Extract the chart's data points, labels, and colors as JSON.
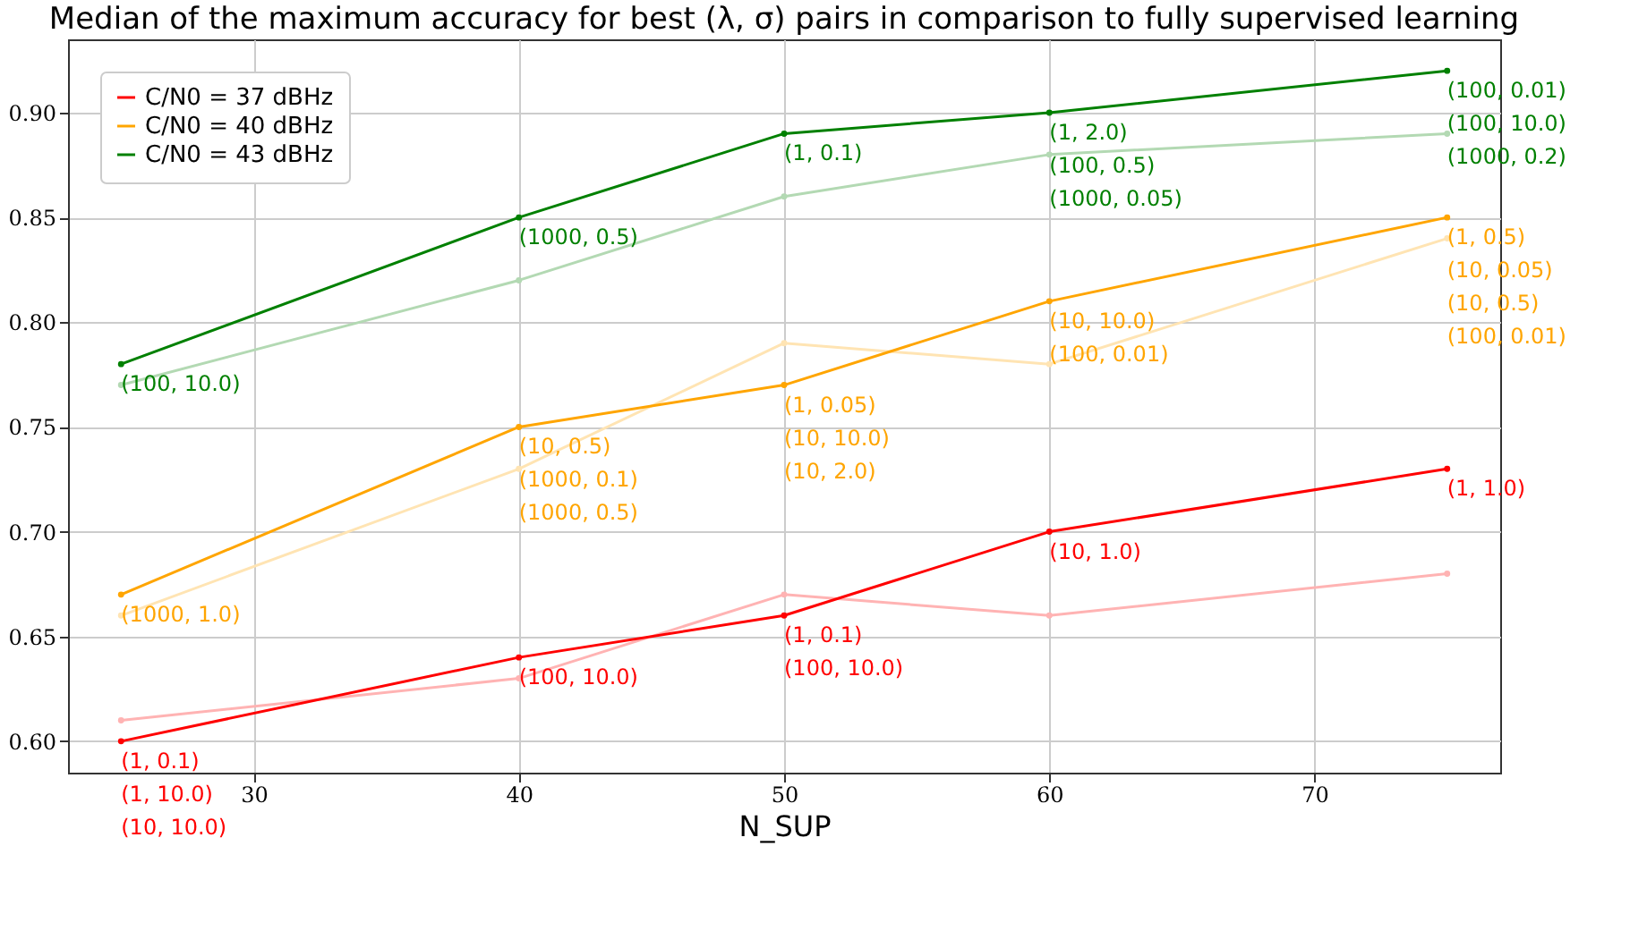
{
  "chart_data": {
    "type": "line",
    "title": "Median of the maximum accuracy for best (λ, σ) pairs in comparison to fully supervised learning",
    "xlabel": "N_SUP",
    "x": [
      25,
      40,
      50,
      60,
      75
    ],
    "series": [
      {
        "name": "C/N0 = 37 dBHz",
        "color": "#ff0000",
        "values": [
          0.6,
          0.64,
          0.66,
          0.7,
          0.73
        ]
      },
      {
        "name": "C/N0 = 40 dBHz",
        "color": "#ffa500",
        "values": [
          0.67,
          0.75,
          0.77,
          0.81,
          0.85
        ]
      },
      {
        "name": "C/N0 = 43 dBHz",
        "color": "#008000",
        "values": [
          0.78,
          0.85,
          0.89,
          0.9,
          0.92
        ]
      },
      {
        "color": "#ffb3b3",
        "values": [
          0.61,
          0.63,
          0.67,
          0.66,
          0.68
        ]
      },
      {
        "color": "#ffe4b3",
        "values": [
          0.66,
          0.73,
          0.79,
          0.78,
          0.84
        ]
      },
      {
        "color": "#b3d9b3",
        "values": [
          0.77,
          0.82,
          0.86,
          0.88,
          0.89
        ]
      }
    ],
    "annotations": [
      {
        "text": "(1, 0.1)\n(1, 10.0)\n(10, 10.0)",
        "x": 25,
        "y": 0.6
      },
      {
        "text": "(100, 10.0)",
        "x": 40,
        "y": 0.64
      },
      {
        "text": "(1, 0.1)\n(100, 10.0)",
        "x": 50,
        "y": 0.66
      },
      {
        "text": "(10, 1.0)",
        "x": 60,
        "y": 0.7
      },
      {
        "text": "(1, 1.0)",
        "x": 75,
        "y": 0.73
      },
      {
        "text": "(1000, 1.0)",
        "x": 25,
        "y": 0.67
      },
      {
        "text": "(10, 0.5)\n(1000, 0.1)\n(1000, 0.5)",
        "x": 40,
        "y": 0.75
      },
      {
        "text": "(1, 0.05)\n(10, 10.0)\n(10, 2.0)",
        "x": 50,
        "y": 0.77
      },
      {
        "text": "(10, 10.0)\n(100, 0.01)",
        "x": 60,
        "y": 0.81
      },
      {
        "text": "(1, 0.5)\n(10, 0.05)\n(10, 0.5)\n(100, 0.01)",
        "x": 75,
        "y": 0.85
      },
      {
        "text": "(100, 10.0)",
        "x": 25,
        "y": 0.78
      },
      {
        "text": "(1000, 0.5)",
        "x": 40,
        "y": 0.85
      },
      {
        "text": "(1, 0.1)",
        "x": 50,
        "y": 0.89
      },
      {
        "text": "(1, 2.0)\n(100, 0.5)\n(1000, 0.05)",
        "x": 60,
        "y": 0.9
      },
      {
        "text": "(100, 0.01)\n(100, 10.0)\n(1000, 0.2)",
        "x": 75,
        "y": 0.92
      }
    ],
    "xlim": [
      23,
      77
    ],
    "xticks": [
      30,
      40,
      50,
      60,
      70
    ],
    "ylim": [
      0.585,
      0.935
    ],
    "yticks": [
      {
        "value": 0.6,
        "label": "0.60"
      },
      0.65,
      {
        "value": 0.7,
        "label": "0.70"
      },
      0.75,
      {
        "value": 0.8,
        "label": "0.80"
      },
      0.85,
      {
        "value": 0.9,
        "label": "0.90"
      }
    ],
    "grid": true,
    "legend": "top left",
    "marker": "circle",
    "line_style": "solid"
  }
}
